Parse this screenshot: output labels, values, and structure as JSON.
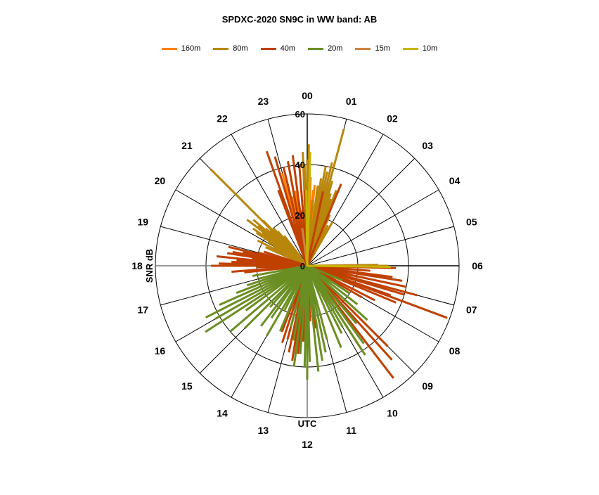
{
  "chart_data": {
    "type": "polar-bar",
    "title": "SPDXC-2020  SN9C  in WW band: AB",
    "radial_label": "SNR dB",
    "angular_label": "UTC",
    "radial_range": [
      0,
      60
    ],
    "radial_ticks": [
      "0",
      "20",
      "40",
      "60"
    ],
    "radial_tick_values": [
      0,
      20,
      40,
      60
    ],
    "angular_ticks": [
      "00",
      "01",
      "02",
      "03",
      "04",
      "05",
      "06",
      "07",
      "08",
      "09",
      "10",
      "11",
      "12",
      "13",
      "14",
      "15",
      "16",
      "17",
      "18",
      "19",
      "20",
      "21",
      "22",
      "23"
    ],
    "legend_position": "top",
    "series": [
      {
        "name": "160m",
        "color": "#FF8000",
        "points": [
          [
            22.7,
            25
          ],
          [
            22.8,
            18
          ],
          [
            22.9,
            30
          ],
          [
            23.0,
            38
          ],
          [
            23.1,
            33
          ],
          [
            23.2,
            28
          ],
          [
            23.3,
            36
          ],
          [
            23.4,
            30
          ],
          [
            23.5,
            25
          ],
          [
            23.6,
            22
          ],
          [
            23.7,
            32
          ],
          [
            23.8,
            20
          ],
          [
            0.15,
            35
          ],
          [
            0.25,
            26
          ],
          [
            0.3,
            30
          ],
          [
            0.35,
            32
          ],
          [
            0.4,
            24
          ],
          [
            0.5,
            28
          ],
          [
            0.6,
            20
          ]
        ]
      },
      {
        "name": "80m",
        "color": "#B8860B",
        "points": [
          [
            19.6,
            18
          ],
          [
            19.8,
            22
          ],
          [
            20.0,
            15
          ],
          [
            20.1,
            18
          ],
          [
            20.2,
            24
          ],
          [
            20.3,
            26
          ],
          [
            20.4,
            22
          ],
          [
            20.5,
            30
          ],
          [
            20.6,
            25
          ],
          [
            20.7,
            28
          ],
          [
            20.8,
            22
          ],
          [
            20.9,
            20
          ],
          [
            21.0,
            54
          ],
          [
            21.05,
            25
          ],
          [
            21.2,
            20
          ],
          [
            21.3,
            18
          ],
          [
            21.5,
            15
          ],
          [
            23.85,
            45
          ],
          [
            23.9,
            40
          ],
          [
            0.0,
            42
          ],
          [
            0.05,
            48
          ],
          [
            0.1,
            40
          ],
          [
            0.3,
            26
          ],
          [
            0.5,
            32
          ],
          [
            0.6,
            35
          ],
          [
            0.7,
            40
          ],
          [
            0.8,
            38
          ],
          [
            0.9,
            42
          ],
          [
            1.0,
            56
          ],
          [
            1.1,
            35
          ],
          [
            1.2,
            30
          ],
          [
            1.3,
            28
          ],
          [
            1.4,
            32
          ],
          [
            1.6,
            22
          ],
          [
            1.8,
            18
          ],
          [
            2.0,
            20
          ],
          [
            5.95,
            28
          ],
          [
            6.0,
            32
          ]
        ]
      },
      {
        "name": "40m",
        "color": "#C04000",
        "points": [
          [
            17.6,
            25
          ],
          [
            17.7,
            30
          ],
          [
            17.9,
            20
          ],
          [
            18.0,
            38
          ],
          [
            18.05,
            25
          ],
          [
            18.1,
            35
          ],
          [
            18.2,
            30
          ],
          [
            18.3,
            28
          ],
          [
            18.4,
            36
          ],
          [
            18.5,
            22
          ],
          [
            18.6,
            32
          ],
          [
            18.7,
            30
          ],
          [
            18.8,
            26
          ],
          [
            18.9,
            32
          ],
          [
            19.0,
            20
          ],
          [
            19.2,
            18
          ],
          [
            22.6,
            32
          ],
          [
            22.7,
            48
          ],
          [
            22.9,
            45
          ],
          [
            23.1,
            40
          ],
          [
            23.3,
            42
          ],
          [
            23.5,
            44
          ],
          [
            23.7,
            40
          ],
          [
            23.9,
            30
          ],
          [
            0.8,
            30
          ],
          [
            1.5,
            35
          ],
          [
            6.1,
            35
          ],
          [
            6.3,
            25
          ],
          [
            6.5,
            34
          ],
          [
            6.6,
            38
          ],
          [
            6.8,
            40
          ],
          [
            7.0,
            45
          ],
          [
            7.1,
            40
          ],
          [
            7.36,
            59
          ],
          [
            7.3,
            35
          ],
          [
            7.5,
            38
          ],
          [
            7.8,
            30
          ],
          [
            8.0,
            25
          ],
          [
            9.0,
            45
          ],
          [
            9.2,
            50
          ],
          [
            9.5,
            56
          ],
          [
            9.8,
            40
          ],
          [
            11.5,
            25
          ],
          [
            11.8,
            22
          ],
          [
            12.2,
            30
          ],
          [
            12.4,
            35
          ],
          [
            12.6,
            38
          ],
          [
            12.8,
            35
          ],
          [
            13.0,
            30
          ],
          [
            13.2,
            32
          ],
          [
            13.4,
            28
          ]
        ]
      },
      {
        "name": "20m",
        "color": "#6B8E23",
        "points": [
          [
            7.5,
            15
          ],
          [
            8.2,
            20
          ],
          [
            8.5,
            25
          ],
          [
            8.8,
            32
          ],
          [
            9.3,
            30
          ],
          [
            9.6,
            38
          ],
          [
            9.8,
            42
          ],
          [
            10.0,
            28
          ],
          [
            10.2,
            30
          ],
          [
            10.5,
            35
          ],
          [
            11.0,
            30
          ],
          [
            11.2,
            35
          ],
          [
            11.4,
            38
          ],
          [
            11.6,
            42
          ],
          [
            11.9,
            38
          ],
          [
            12.0,
            45
          ],
          [
            12.1,
            40
          ],
          [
            12.3,
            35
          ],
          [
            12.5,
            40
          ],
          [
            12.7,
            30
          ],
          [
            13.0,
            25
          ],
          [
            13.5,
            28
          ],
          [
            13.8,
            20
          ],
          [
            14.0,
            32
          ],
          [
            14.3,
            25
          ],
          [
            14.5,
            30
          ],
          [
            14.8,
            22
          ],
          [
            15.0,
            35
          ],
          [
            15.3,
            40
          ],
          [
            15.6,
            30
          ],
          [
            15.8,
            48
          ],
          [
            16.0,
            42
          ],
          [
            16.2,
            45
          ],
          [
            16.4,
            38
          ],
          [
            16.6,
            30
          ],
          [
            16.8,
            25
          ],
          [
            17.0,
            20
          ],
          [
            17.3,
            22
          ]
        ]
      },
      {
        "name": "15m",
        "color": "#CD853F",
        "points": [
          [
            6.02,
            20
          ],
          [
            23.5,
            15
          ]
        ]
      },
      {
        "name": "10m",
        "color": "#C8B400",
        "points": [
          [
            6.05,
            33
          ],
          [
            0.1,
            45
          ],
          [
            23.95,
            30
          ]
        ]
      }
    ]
  }
}
